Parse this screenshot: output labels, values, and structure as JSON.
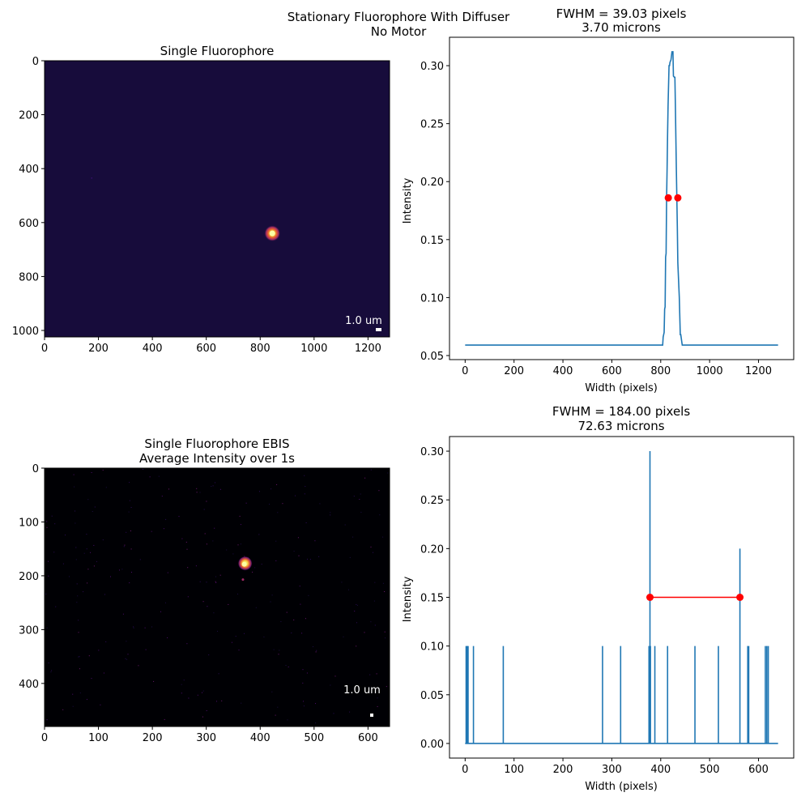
{
  "figure": {
    "suptitle_line1": "Stationary Fluorophore With Diffuser",
    "suptitle_line2": "No Motor"
  },
  "chart_data": [
    {
      "type": "heatmap",
      "title": "Single Fluorophore",
      "colormap": "inferno",
      "background_color": "#170c3b",
      "xlim": [
        0,
        1280
      ],
      "ylim": [
        1024,
        0
      ],
      "xticks": [
        0,
        200,
        400,
        600,
        800,
        1000,
        1200
      ],
      "yticks": [
        0,
        200,
        400,
        600,
        800,
        1000
      ],
      "spot": {
        "x": 845,
        "y": 640
      },
      "scalebar_label": "1.0 um"
    },
    {
      "type": "line",
      "title_line1": "FWHM = 39.03 pixels",
      "title_line2": "3.70 microns",
      "xlabel": "Width (pixels)",
      "ylabel": "Intensity",
      "xlim": [
        -64,
        1344
      ],
      "ylim": [
        0.0465,
        0.3245
      ],
      "xticks": [
        0,
        200,
        400,
        600,
        800,
        1000,
        1200
      ],
      "yticks": [
        0.05,
        0.1,
        0.15,
        0.2,
        0.25,
        0.3
      ],
      "ytick_decimals": 2,
      "line_color": "#1f77b4",
      "marker_color": "#ff0000",
      "series": [
        {
          "x": [
            0,
            808,
            810,
            812,
            814,
            816,
            818,
            820,
            822,
            824,
            826,
            828,
            830,
            834,
            836,
            838,
            842,
            846,
            850,
            852,
            856,
            858,
            860,
            864,
            866,
            868,
            870,
            876,
            880,
            882,
            888,
            1280
          ],
          "y": [
            0.059,
            0.059,
            0.066,
            0.068,
            0.07,
            0.09,
            0.092,
            0.135,
            0.138,
            0.185,
            0.21,
            0.24,
            0.265,
            0.3,
            0.3,
            0.303,
            0.305,
            0.312,
            0.312,
            0.291,
            0.29,
            0.29,
            0.265,
            0.21,
            0.185,
            0.16,
            0.13,
            0.1,
            0.068,
            0.068,
            0.059,
            0.059
          ]
        }
      ],
      "fwhm_points": {
        "x": [
          831,
          870
        ],
        "y": [
          0.186,
          0.186
        ]
      }
    },
    {
      "type": "heatmap",
      "title_line1": "Single Fluorophore EBIS",
      "title_line2": "Average Intensity over 1s",
      "colormap": "inferno",
      "background_color": "#000004",
      "xlim": [
        0,
        640
      ],
      "ylim": [
        480,
        0
      ],
      "xticks": [
        0,
        100,
        200,
        300,
        400,
        500,
        600
      ],
      "yticks": [
        0,
        100,
        200,
        300,
        400
      ],
      "spot": {
        "x": 372,
        "y": 177
      },
      "scalebar_label": "1.0 um"
    },
    {
      "type": "line",
      "title_line1": "FWHM = 184.00 pixels",
      "title_line2": "72.63 microns",
      "xlabel": "Width (pixels)",
      "ylabel": "Intensity",
      "xlim": [
        -32,
        672
      ],
      "ylim": [
        -0.015,
        0.315
      ],
      "xticks": [
        0,
        100,
        200,
        300,
        400,
        500,
        600
      ],
      "yticks": [
        0.0,
        0.05,
        0.1,
        0.15,
        0.2,
        0.25,
        0.3
      ],
      "ytick_decimals": 2,
      "line_color": "#1f77b4",
      "marker_color": "#ff0000",
      "baseline": 0.0,
      "spikes": {
        "x": [
          2,
          4,
          6,
          17,
          78,
          281,
          318,
          376,
          378,
          379,
          388,
          414,
          470,
          518,
          562,
          578,
          580,
          614,
          617,
          620
        ],
        "y": [
          0.1,
          0.1,
          0.1,
          0.1,
          0.1,
          0.1,
          0.1,
          0.1,
          0.3,
          0.1,
          0.1,
          0.1,
          0.1,
          0.1,
          0.2,
          0.1,
          0.1,
          0.1,
          0.1,
          0.1
        ]
      },
      "fwhm_points": {
        "x": [
          378,
          562
        ],
        "y": [
          0.15,
          0.15
        ]
      }
    }
  ]
}
